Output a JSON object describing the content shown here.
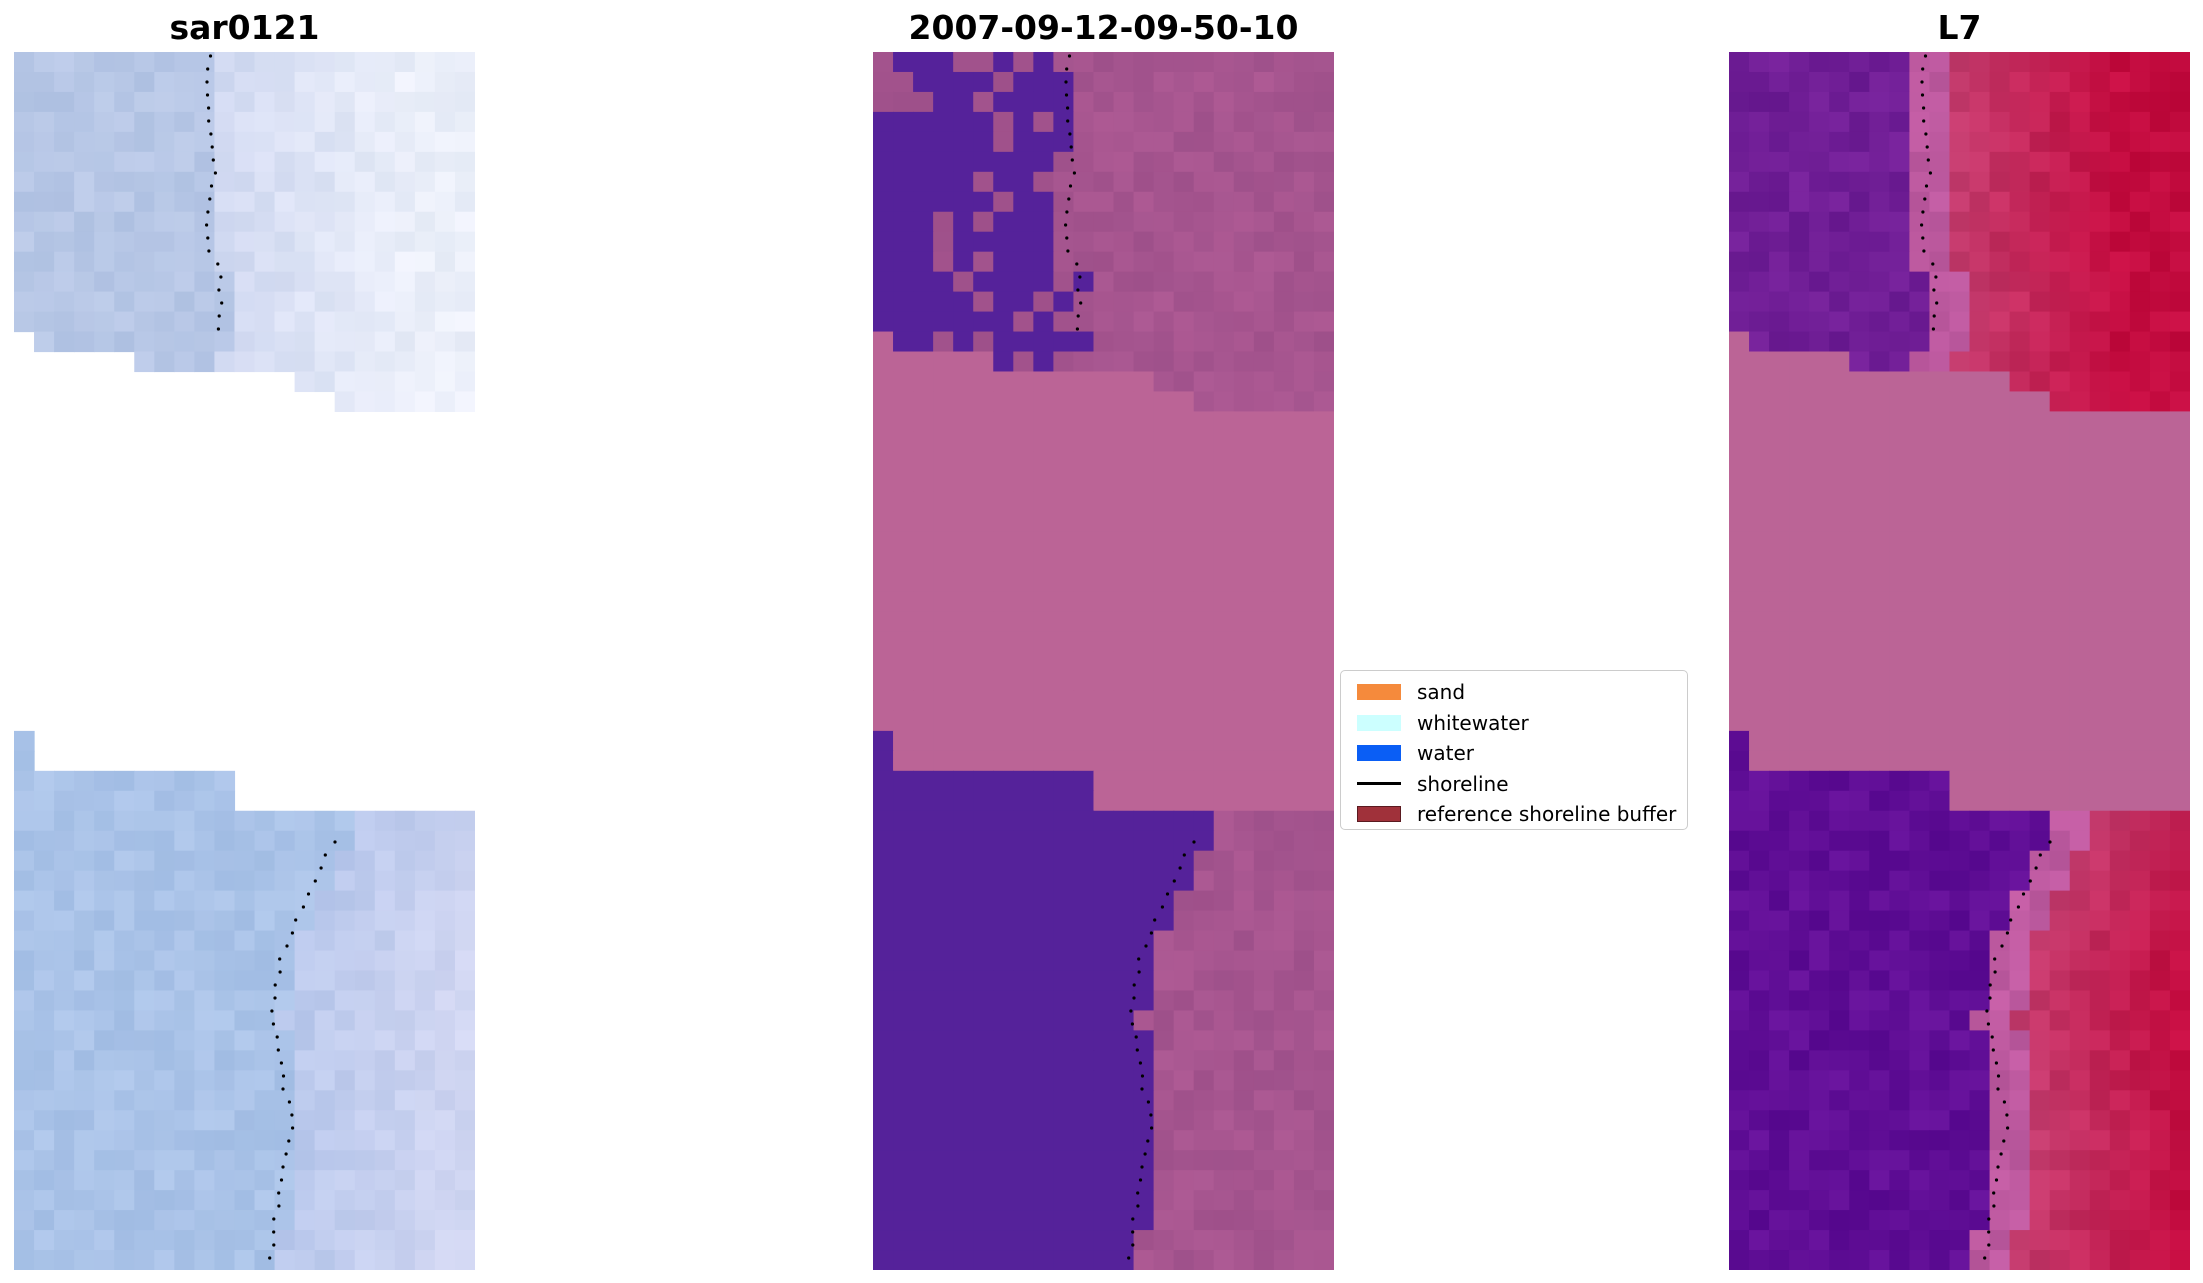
{
  "panels": [
    {
      "title": "sar0121"
    },
    {
      "title": "2007-09-12-09-50-10"
    },
    {
      "title": "L7"
    }
  ],
  "legend": {
    "items": [
      {
        "label": "sand",
        "color": "#f58a3c",
        "kind": "patch"
      },
      {
        "label": "whitewater",
        "color": "#ccffff",
        "kind": "patch"
      },
      {
        "label": "water",
        "color": "#0a5ef5",
        "kind": "patch"
      },
      {
        "label": "shoreline",
        "color": "#000000",
        "kind": "line"
      },
      {
        "label": "reference shoreline buffer",
        "color": "#a0313a",
        "kind": "patch-outline"
      }
    ]
  },
  "colors": {
    "sar_light_blue": "#b7c7e8",
    "sar_pale": "#dfe6f6",
    "classified_water_purple": "#55229a",
    "classified_land_pink": "#a6558f",
    "nodata_pink": "#bb6496",
    "l7_purple": "#6a1c9c",
    "l7_red": "#c10f47",
    "shoreline_dot": "#000000"
  }
}
